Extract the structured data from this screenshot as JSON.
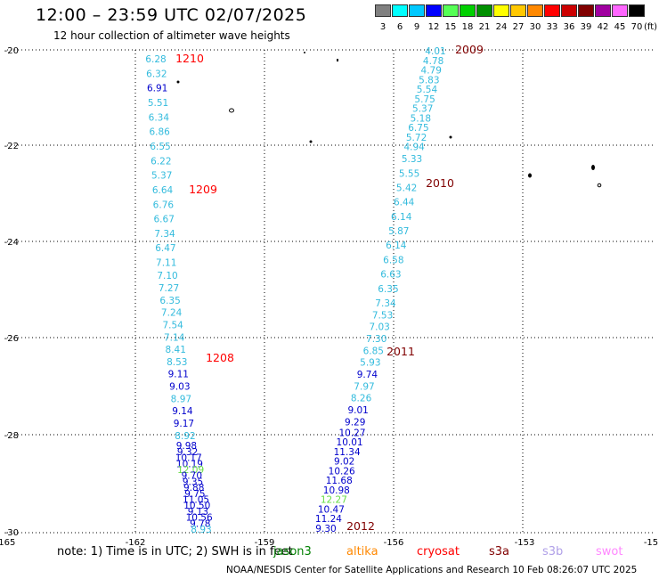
{
  "header": {
    "title": "12:00 – 23:59 UTC 02/07/2025",
    "subtitle": "12 hour collection of altimeter wave heights"
  },
  "legend": {
    "items": [
      {
        "color": "#808080",
        "label": "3"
      },
      {
        "color": "#00ffff",
        "label": "6"
      },
      {
        "color": "#00c8ff",
        "label": "9"
      },
      {
        "color": "#0000ff",
        "label": "12"
      },
      {
        "color": "#55ff55",
        "label": "15"
      },
      {
        "color": "#00d000",
        "label": "18"
      },
      {
        "color": "#009000",
        "label": "21"
      },
      {
        "color": "#ffff00",
        "label": "24"
      },
      {
        "color": "#ffc800",
        "label": "27"
      },
      {
        "color": "#ff8800",
        "label": "30"
      },
      {
        "color": "#ff0000",
        "label": "33"
      },
      {
        "color": "#cc0000",
        "label": "36"
      },
      {
        "color": "#800000",
        "label": "39"
      },
      {
        "color": "#a000a0",
        "label": "42"
      },
      {
        "color": "#ff66ff",
        "label": "45"
      },
      {
        "color": "#000000",
        "label": "70"
      }
    ],
    "unit": "(ft)"
  },
  "axes": {
    "lon_ticks": [
      "-165",
      "-162",
      "-159",
      "-156",
      "-153",
      "-15"
    ],
    "lat_ticks": [
      "-20",
      "-22",
      "-24",
      "-26",
      "-28",
      "-30"
    ]
  },
  "time_labels": [
    {
      "text": "1210",
      "color": "#ff0000"
    },
    {
      "text": "1209",
      "color": "#ff0000"
    },
    {
      "text": "1208",
      "color": "#ff0000"
    },
    {
      "text": "2009",
      "color": "#800000"
    },
    {
      "text": "2010",
      "color": "#800000"
    },
    {
      "text": "2011",
      "color": "#800000"
    },
    {
      "text": "2012",
      "color": "#800000"
    }
  ],
  "tracks": [
    {
      "values": [
        {
          "v": "6.28",
          "c": "#33bbdd"
        },
        {
          "v": "6.32",
          "c": "#33bbdd"
        },
        {
          "v": "6.91",
          "c": "#0000cc"
        },
        {
          "v": "5.51",
          "c": "#33bbdd"
        },
        {
          "v": "6.34",
          "c": "#33bbdd"
        },
        {
          "v": "6.86",
          "c": "#33bbdd"
        },
        {
          "v": "6.55",
          "c": "#33bbdd"
        },
        {
          "v": "6.22",
          "c": "#33bbdd"
        },
        {
          "v": "5.37",
          "c": "#33bbdd"
        },
        {
          "v": "6.64",
          "c": "#33bbdd"
        },
        {
          "v": "6.76",
          "c": "#33bbdd"
        },
        {
          "v": "6.67",
          "c": "#33bbdd"
        },
        {
          "v": "7.34",
          "c": "#33bbdd"
        },
        {
          "v": "6.47",
          "c": "#33bbdd"
        },
        {
          "v": "7.11",
          "c": "#33bbdd"
        },
        {
          "v": "7.10",
          "c": "#33bbdd"
        },
        {
          "v": "7.27",
          "c": "#33bbdd"
        },
        {
          "v": "6.35",
          "c": "#33bbdd"
        },
        {
          "v": "7.24",
          "c": "#33bbdd"
        },
        {
          "v": "7.54",
          "c": "#33bbdd"
        },
        {
          "v": "7.14",
          "c": "#33bbdd"
        },
        {
          "v": "8.41",
          "c": "#33bbdd"
        },
        {
          "v": "8.53",
          "c": "#33bbdd"
        },
        {
          "v": "9.11",
          "c": "#0000cc"
        },
        {
          "v": "9.03",
          "c": "#0000cc"
        },
        {
          "v": "8.97",
          "c": "#33bbdd"
        },
        {
          "v": "9.14",
          "c": "#0000cc"
        },
        {
          "v": "9.17",
          "c": "#0000cc"
        },
        {
          "v": "8.92",
          "c": "#33bbdd"
        },
        {
          "v": "9.98",
          "c": "#0000cc"
        },
        {
          "v": "9.32",
          "c": "#0000cc"
        },
        {
          "v": "10.17",
          "c": "#0000cc"
        },
        {
          "v": "10.19",
          "c": "#0000cc"
        },
        {
          "v": "12.09",
          "c": "#66dd44"
        },
        {
          "v": "9.70",
          "c": "#0000cc"
        },
        {
          "v": "9.35",
          "c": "#0000cc"
        },
        {
          "v": "9.88",
          "c": "#0000cc"
        },
        {
          "v": "9.75",
          "c": "#0000cc"
        },
        {
          "v": "11.05",
          "c": "#0000cc"
        },
        {
          "v": "10.50",
          "c": "#0000cc"
        },
        {
          "v": "9.13",
          "c": "#0000cc"
        },
        {
          "v": "10.56",
          "c": "#0000cc"
        },
        {
          "v": "9.78",
          "c": "#0000cc"
        },
        {
          "v": "8.93",
          "c": "#33bbdd"
        }
      ]
    },
    {
      "values": [
        {
          "v": "4.01",
          "c": "#33bbdd"
        },
        {
          "v": "4.78",
          "c": "#33bbdd"
        },
        {
          "v": "4.79",
          "c": "#33bbdd"
        },
        {
          "v": "5.83",
          "c": "#33bbdd"
        },
        {
          "v": "5.54",
          "c": "#33bbdd"
        },
        {
          "v": "5.75",
          "c": "#33bbdd"
        },
        {
          "v": "5.37",
          "c": "#33bbdd"
        },
        {
          "v": "5.18",
          "c": "#33bbdd"
        },
        {
          "v": "6.75",
          "c": "#33bbdd"
        },
        {
          "v": "5.72",
          "c": "#33bbdd"
        },
        {
          "v": "4.94",
          "c": "#33bbdd"
        },
        {
          "v": "5.33",
          "c": "#33bbdd"
        },
        {
          "v": "5.55",
          "c": "#33bbdd"
        },
        {
          "v": "5.42",
          "c": "#33bbdd"
        },
        {
          "v": "6.44",
          "c": "#33bbdd"
        },
        {
          "v": "6.14",
          "c": "#33bbdd"
        },
        {
          "v": "5.87",
          "c": "#33bbdd"
        },
        {
          "v": "6.14",
          "c": "#33bbdd"
        },
        {
          "v": "6.58",
          "c": "#33bbdd"
        },
        {
          "v": "6.63",
          "c": "#33bbdd"
        },
        {
          "v": "6.35",
          "c": "#33bbdd"
        },
        {
          "v": "7.34",
          "c": "#33bbdd"
        },
        {
          "v": "7.53",
          "c": "#33bbdd"
        },
        {
          "v": "7.03",
          "c": "#33bbdd"
        },
        {
          "v": "7.30",
          "c": "#33bbdd"
        },
        {
          "v": "6.85",
          "c": "#33bbdd"
        },
        {
          "v": "5.93",
          "c": "#33bbdd"
        },
        {
          "v": "9.74",
          "c": "#0000cc"
        },
        {
          "v": "7.97",
          "c": "#33bbdd"
        },
        {
          "v": "8.26",
          "c": "#33bbdd"
        },
        {
          "v": "9.01",
          "c": "#0000cc"
        },
        {
          "v": "9.29",
          "c": "#0000cc"
        },
        {
          "v": "10.27",
          "c": "#0000cc"
        },
        {
          "v": "10.01",
          "c": "#0000cc"
        },
        {
          "v": "11.34",
          "c": "#0000cc"
        },
        {
          "v": "9.02",
          "c": "#0000cc"
        },
        {
          "v": "10.26",
          "c": "#0000cc"
        },
        {
          "v": "11.68",
          "c": "#0000cc"
        },
        {
          "v": "10.98",
          "c": "#0000cc"
        },
        {
          "v": "12.27",
          "c": "#66dd44"
        },
        {
          "v": "10.47",
          "c": "#0000cc"
        },
        {
          "v": "11.24",
          "c": "#0000cc"
        },
        {
          "v": "9.30",
          "c": "#0000cc"
        }
      ]
    }
  ],
  "footer": {
    "note": "note:  1) Time is in UTC; 2) SWH is in feet",
    "satellites": [
      {
        "name": "jason3",
        "color": "#008000"
      },
      {
        "name": "altika",
        "color": "#ff8800"
      },
      {
        "name": "cryosat",
        "color": "#ff0000"
      },
      {
        "name": "s3a",
        "color": "#800000"
      },
      {
        "name": "s3b",
        "color": "#b0a0e8"
      },
      {
        "name": "swot",
        "color": "#ff88ff"
      }
    ],
    "credit": "NOAA/NESDIS Center for Satellite Applications and Research    10 Feb 08:26:07 UTC 2025"
  }
}
